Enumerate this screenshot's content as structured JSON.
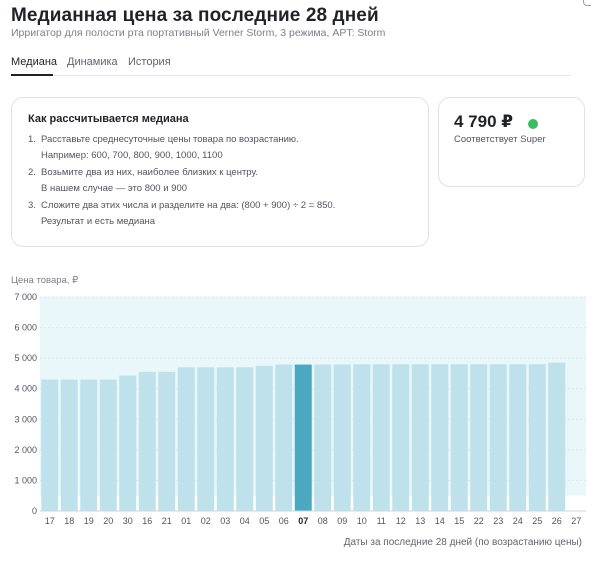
{
  "header": {
    "title": "Медианная цена за последние 28 дней",
    "subtitle": "Ирригатор для полости рта портативный Verner Storm, 3 режима, APT: Storm"
  },
  "tabs": [
    {
      "label": "Медиана",
      "active": true
    },
    {
      "label": "Динамика",
      "active": false
    },
    {
      "label": "История",
      "active": false
    }
  ],
  "explain": {
    "title": "Как рассчитывается медиана",
    "steps": [
      {
        "num": "1.",
        "line1": "Расставьте среднесуточные цены товара по возрастанию.",
        "line2": "Например: 600, 700, 800, 900, 1000, 1100"
      },
      {
        "num": "2.",
        "line1": "Возьмите два из них, наиболее близких к центру.",
        "line2": "В нашем случае — это 800 и 900"
      },
      {
        "num": "3.",
        "line1": "Сложите два этих числа и разделите на два: (800 + 900) ÷ 2 = 850.",
        "line2": "Результат и есть медиана"
      }
    ]
  },
  "price": {
    "value": "4 790 ₽",
    "label": "Соответствует Super",
    "status_color": "#3dbb63"
  },
  "chart_data": {
    "type": "bar",
    "ylabel": "Цена товара, ₽",
    "xlabel": "Даты за последние 28 дней (по возрастанию цены)",
    "ylim": [
      0,
      7000
    ],
    "yticks": [
      "0",
      "1 000",
      "2 000",
      "3 000",
      "4 000",
      "5 000",
      "6 000",
      "7 000"
    ],
    "categories": [
      "17",
      "18",
      "19",
      "20",
      "30",
      "16",
      "21",
      "01",
      "02",
      "03",
      "04",
      "05",
      "06",
      "07",
      "08",
      "09",
      "10",
      "11",
      "12",
      "13",
      "14",
      "15",
      "22",
      "23",
      "24",
      "25",
      "26",
      "27"
    ],
    "values": [
      4300,
      4300,
      4300,
      4300,
      4430,
      4550,
      4550,
      4700,
      4700,
      4700,
      4700,
      4750,
      4790,
      4790,
      4790,
      4790,
      4800,
      4800,
      4800,
      4800,
      4800,
      4800,
      4800,
      4800,
      4800,
      4800,
      4850,
      0
    ],
    "highlight_index": 13,
    "band_upper": 7000,
    "band_lower": 500,
    "colors": {
      "bar": "#bfe1eb",
      "highlight": "#4aa8bf",
      "band": "#e9f6fa"
    }
  }
}
